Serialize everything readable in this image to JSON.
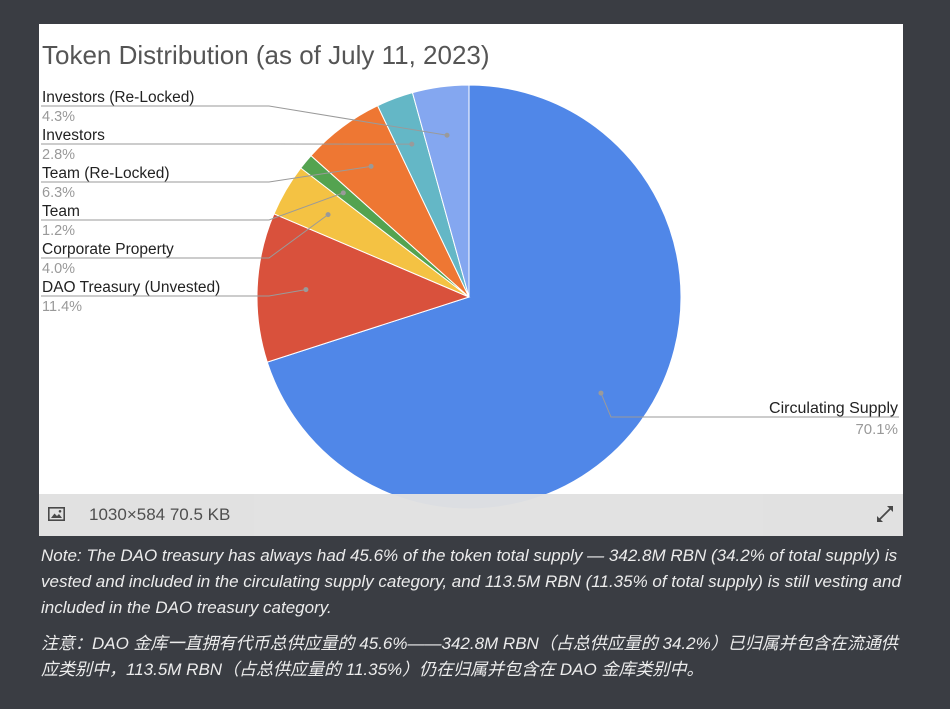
{
  "chart_data": {
    "type": "pie",
    "title": "Token Distribution (as of July 11, 2023)",
    "slices": [
      {
        "label": "Circulating Supply",
        "value": 70.1,
        "display": "70.1%",
        "color": "#5087e8"
      },
      {
        "label": "DAO Treasury (Unvested)",
        "value": 11.4,
        "display": "11.4%",
        "color": "#d9513c"
      },
      {
        "label": "Corporate Property",
        "value": 4.0,
        "display": "4.0%",
        "color": "#f4c243"
      },
      {
        "label": "Team",
        "value": 1.2,
        "display": "1.2%",
        "color": "#54a350"
      },
      {
        "label": "Team (Re-Locked)",
        "value": 6.3,
        "display": "6.3%",
        "color": "#ee7733"
      },
      {
        "label": "Investors",
        "value": 2.8,
        "display": "2.8%",
        "color": "#64b7c6"
      },
      {
        "label": "Investors (Re-Locked)",
        "value": 4.3,
        "display": "4.3%",
        "color": "#84a7f0"
      }
    ],
    "legend": "callout labels"
  },
  "infobar": {
    "meta": "1030×584 70.5 KB",
    "image_icon": "image-icon",
    "expand_icon": "expand-icon"
  },
  "note": {
    "english": "Note: The DAO treasury has always had 45.6% of the token total supply — 342.8M RBN (34.2% of total supply) is vested and included in the circulating supply category, and 113.5M RBN (11.35% of total supply) is still vesting and included in the DAO treasury category.",
    "chinese": "注意：DAO 金库一直拥有代币总供应量的 45.6%——342.8M RBN（占总供应量的 34.2%）已归属并包含在流通供应类别中，113.5M RBN（占总供应量的 11.35%）仍在归属并包含在 DAO 金库类别中。"
  }
}
